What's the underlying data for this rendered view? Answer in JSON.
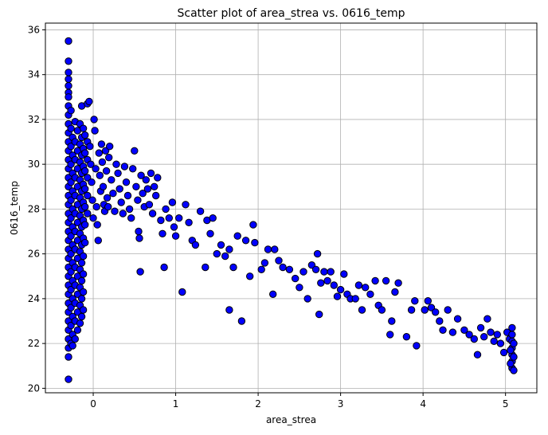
{
  "chart_data": {
    "type": "scatter",
    "title": "Scatter plot of area_strea vs. 0616_temp",
    "xlabel": "area_strea",
    "ylabel": "0616_temp",
    "xlim": [
      -0.58,
      5.38
    ],
    "ylim": [
      19.8,
      36.3
    ],
    "xticks": [
      0,
      1,
      2,
      3,
      4,
      5
    ],
    "yticks": [
      20,
      22,
      24,
      26,
      28,
      30,
      32,
      34,
      36
    ],
    "grid": true,
    "marker_color": "#0000ff",
    "edge_color": "#000000",
    "points": [
      [
        -0.3,
        35.5
      ],
      [
        -0.3,
        34.6
      ],
      [
        -0.3,
        34.1
      ],
      [
        -0.3,
        33.8
      ],
      [
        -0.3,
        33.5
      ],
      [
        -0.3,
        33.2
      ],
      [
        -0.3,
        33.0
      ],
      [
        -0.3,
        32.6
      ],
      [
        -0.3,
        32.2
      ],
      [
        -0.3,
        31.8
      ],
      [
        -0.3,
        31.4
      ],
      [
        -0.3,
        31.0
      ],
      [
        -0.3,
        30.6
      ],
      [
        -0.3,
        30.2
      ],
      [
        -0.3,
        29.8
      ],
      [
        -0.3,
        29.4
      ],
      [
        -0.3,
        29.0
      ],
      [
        -0.3,
        28.6
      ],
      [
        -0.3,
        28.2
      ],
      [
        -0.3,
        27.8
      ],
      [
        -0.3,
        27.4
      ],
      [
        -0.3,
        27.0
      ],
      [
        -0.3,
        26.6
      ],
      [
        -0.3,
        26.2
      ],
      [
        -0.3,
        25.8
      ],
      [
        -0.3,
        25.4
      ],
      [
        -0.3,
        25.0
      ],
      [
        -0.3,
        24.6
      ],
      [
        -0.3,
        24.2
      ],
      [
        -0.3,
        23.8
      ],
      [
        -0.3,
        23.4
      ],
      [
        -0.3,
        23.0
      ],
      [
        -0.3,
        22.6
      ],
      [
        -0.3,
        22.2
      ],
      [
        -0.3,
        21.8
      ],
      [
        -0.3,
        21.4
      ],
      [
        -0.3,
        20.4
      ],
      [
        -0.27,
        32.4
      ],
      [
        -0.27,
        31.6
      ],
      [
        -0.27,
        30.8
      ],
      [
        -0.27,
        30.0
      ],
      [
        -0.27,
        29.2
      ],
      [
        -0.27,
        28.4
      ],
      [
        -0.27,
        27.6
      ],
      [
        -0.27,
        26.8
      ],
      [
        -0.27,
        26.0
      ],
      [
        -0.27,
        25.2
      ],
      [
        -0.27,
        24.4
      ],
      [
        -0.27,
        23.6
      ],
      [
        -0.27,
        22.8
      ],
      [
        -0.27,
        22.0
      ],
      [
        -0.25,
        31.2
      ],
      [
        -0.25,
        30.4
      ],
      [
        -0.25,
        29.6
      ],
      [
        -0.25,
        28.8
      ],
      [
        -0.25,
        28.0
      ],
      [
        -0.25,
        27.2
      ],
      [
        -0.25,
        26.4
      ],
      [
        -0.25,
        25.6
      ],
      [
        -0.25,
        24.8
      ],
      [
        -0.25,
        24.0
      ],
      [
        -0.25,
        23.2
      ],
      [
        -0.25,
        22.4
      ],
      [
        -0.25,
        21.9
      ],
      [
        -0.22,
        31.9
      ],
      [
        -0.22,
        31.0
      ],
      [
        -0.22,
        30.2
      ],
      [
        -0.22,
        29.4
      ],
      [
        -0.22,
        28.6
      ],
      [
        -0.22,
        27.8
      ],
      [
        -0.22,
        27.0
      ],
      [
        -0.22,
        26.2
      ],
      [
        -0.22,
        25.4
      ],
      [
        -0.22,
        24.6
      ],
      [
        -0.22,
        23.8
      ],
      [
        -0.22,
        23.0
      ],
      [
        -0.22,
        22.2
      ],
      [
        -0.19,
        31.5
      ],
      [
        -0.19,
        30.6
      ],
      [
        -0.19,
        29.8
      ],
      [
        -0.19,
        29.0
      ],
      [
        -0.19,
        28.2
      ],
      [
        -0.19,
        27.4
      ],
      [
        -0.19,
        26.6
      ],
      [
        -0.19,
        25.8
      ],
      [
        -0.19,
        25.0
      ],
      [
        -0.19,
        24.2
      ],
      [
        -0.19,
        23.4
      ],
      [
        -0.19,
        22.6
      ],
      [
        -0.16,
        31.8
      ],
      [
        -0.16,
        30.9
      ],
      [
        -0.16,
        30.1
      ],
      [
        -0.16,
        29.3
      ],
      [
        -0.16,
        28.5
      ],
      [
        -0.16,
        27.7
      ],
      [
        -0.16,
        26.9
      ],
      [
        -0.16,
        26.1
      ],
      [
        -0.16,
        25.3
      ],
      [
        -0.16,
        24.5
      ],
      [
        -0.16,
        23.7
      ],
      [
        -0.16,
        22.9
      ],
      [
        -0.14,
        32.6
      ],
      [
        -0.14,
        31.2
      ],
      [
        -0.14,
        30.4
      ],
      [
        -0.14,
        29.6
      ],
      [
        -0.14,
        28.8
      ],
      [
        -0.14,
        28.0
      ],
      [
        -0.14,
        27.2
      ],
      [
        -0.14,
        26.4
      ],
      [
        -0.14,
        25.6
      ],
      [
        -0.14,
        24.8
      ],
      [
        -0.14,
        24.0
      ],
      [
        -0.14,
        23.2
      ],
      [
        -0.12,
        31.6
      ],
      [
        -0.12,
        30.7
      ],
      [
        -0.12,
        29.9
      ],
      [
        -0.12,
        29.1
      ],
      [
        -0.12,
        28.3
      ],
      [
        -0.12,
        27.5
      ],
      [
        -0.12,
        26.7
      ],
      [
        -0.12,
        25.9
      ],
      [
        -0.12,
        25.1
      ],
      [
        -0.12,
        24.3
      ],
      [
        -0.12,
        23.5
      ],
      [
        -0.1,
        31.3
      ],
      [
        -0.1,
        30.5
      ],
      [
        -0.1,
        29.7
      ],
      [
        -0.1,
        28.9
      ],
      [
        -0.1,
        28.1
      ],
      [
        -0.1,
        27.3
      ],
      [
        -0.1,
        26.5
      ],
      [
        -0.07,
        32.7
      ],
      [
        -0.07,
        31.0
      ],
      [
        -0.07,
        30.2
      ],
      [
        -0.07,
        29.4
      ],
      [
        -0.07,
        28.6
      ],
      [
        -0.07,
        27.8
      ],
      [
        -0.05,
        32.8
      ],
      [
        -0.04,
        30.8
      ],
      [
        -0.03,
        30.0
      ],
      [
        -0.02,
        29.2
      ],
      [
        -0.01,
        28.4
      ],
      [
        0.0,
        27.6
      ],
      [
        0.01,
        32.0
      ],
      [
        0.02,
        31.5
      ],
      [
        0.03,
        29.8
      ],
      [
        0.04,
        28.1
      ],
      [
        0.05,
        27.3
      ],
      [
        0.06,
        26.6
      ],
      [
        0.07,
        30.5
      ],
      [
        0.08,
        29.5
      ],
      [
        0.09,
        28.8
      ],
      [
        0.1,
        30.9
      ],
      [
        0.11,
        30.1
      ],
      [
        0.12,
        29.0
      ],
      [
        0.13,
        28.2
      ],
      [
        0.14,
        27.9
      ],
      [
        0.15,
        30.6
      ],
      [
        0.16,
        29.7
      ],
      [
        0.17,
        28.5
      ],
      [
        0.18,
        28.1
      ],
      [
        0.19,
        30.3
      ],
      [
        0.2,
        30.8
      ],
      [
        0.22,
        29.3
      ],
      [
        0.24,
        28.7
      ],
      [
        0.26,
        27.9
      ],
      [
        0.28,
        30.0
      ],
      [
        0.3,
        29.6
      ],
      [
        0.32,
        28.9
      ],
      [
        0.34,
        28.3
      ],
      [
        0.36,
        27.8
      ],
      [
        0.38,
        29.9
      ],
      [
        0.4,
        29.2
      ],
      [
        0.42,
        28.6
      ],
      [
        0.44,
        28.0
      ],
      [
        0.46,
        27.6
      ],
      [
        0.48,
        29.8
      ],
      [
        0.5,
        30.6
      ],
      [
        0.52,
        29.0
      ],
      [
        0.54,
        28.4
      ],
      [
        0.55,
        27.0
      ],
      [
        0.56,
        26.7
      ],
      [
        0.57,
        25.2
      ],
      [
        0.58,
        29.5
      ],
      [
        0.6,
        28.7
      ],
      [
        0.62,
        28.1
      ],
      [
        0.64,
        29.3
      ],
      [
        0.66,
        28.9
      ],
      [
        0.68,
        28.2
      ],
      [
        0.7,
        29.6
      ],
      [
        0.72,
        27.8
      ],
      [
        0.74,
        29.0
      ],
      [
        0.76,
        28.6
      ],
      [
        0.78,
        29.4
      ],
      [
        0.82,
        27.5
      ],
      [
        0.84,
        26.9
      ],
      [
        0.86,
        25.4
      ],
      [
        0.88,
        28.0
      ],
      [
        0.92,
        27.6
      ],
      [
        0.96,
        28.3
      ],
      [
        0.98,
        27.2
      ],
      [
        1.0,
        26.8
      ],
      [
        1.04,
        27.6
      ],
      [
        1.08,
        24.3
      ],
      [
        1.12,
        28.2
      ],
      [
        1.16,
        27.4
      ],
      [
        1.2,
        26.6
      ],
      [
        1.24,
        26.4
      ],
      [
        1.3,
        27.9
      ],
      [
        1.36,
        25.4
      ],
      [
        1.38,
        27.5
      ],
      [
        1.42,
        26.9
      ],
      [
        1.45,
        27.6
      ],
      [
        1.5,
        26.0
      ],
      [
        1.55,
        26.4
      ],
      [
        1.6,
        25.9
      ],
      [
        1.65,
        26.2
      ],
      [
        1.7,
        25.4
      ],
      [
        1.65,
        23.5
      ],
      [
        1.75,
        26.8
      ],
      [
        1.8,
        23.0
      ],
      [
        1.85,
        26.6
      ],
      [
        1.9,
        25.0
      ],
      [
        1.94,
        27.3
      ],
      [
        1.96,
        26.5
      ],
      [
        2.04,
        25.3
      ],
      [
        2.08,
        25.6
      ],
      [
        2.12,
        26.2
      ],
      [
        2.18,
        24.2
      ],
      [
        2.2,
        26.2
      ],
      [
        2.25,
        25.7
      ],
      [
        2.3,
        25.4
      ],
      [
        2.38,
        25.3
      ],
      [
        2.45,
        24.9
      ],
      [
        2.5,
        24.5
      ],
      [
        2.55,
        25.2
      ],
      [
        2.6,
        24.0
      ],
      [
        2.65,
        25.5
      ],
      [
        2.7,
        25.3
      ],
      [
        2.72,
        26.0
      ],
      [
        2.74,
        23.3
      ],
      [
        2.76,
        24.7
      ],
      [
        2.8,
        25.2
      ],
      [
        2.84,
        24.8
      ],
      [
        2.88,
        25.2
      ],
      [
        2.92,
        24.6
      ],
      [
        2.96,
        24.1
      ],
      [
        3.0,
        24.4
      ],
      [
        3.04,
        25.1
      ],
      [
        3.08,
        24.2
      ],
      [
        3.12,
        24.0
      ],
      [
        3.18,
        24.0
      ],
      [
        3.22,
        24.6
      ],
      [
        3.26,
        23.5
      ],
      [
        3.3,
        24.5
      ],
      [
        3.36,
        24.2
      ],
      [
        3.42,
        24.8
      ],
      [
        3.46,
        23.7
      ],
      [
        3.5,
        23.5
      ],
      [
        3.55,
        24.8
      ],
      [
        3.6,
        22.4
      ],
      [
        3.62,
        23.0
      ],
      [
        3.66,
        24.3
      ],
      [
        3.7,
        24.7
      ],
      [
        3.8,
        22.3
      ],
      [
        3.86,
        23.5
      ],
      [
        3.9,
        23.9
      ],
      [
        3.92,
        21.9
      ],
      [
        4.02,
        23.5
      ],
      [
        4.06,
        23.9
      ],
      [
        4.1,
        23.6
      ],
      [
        4.15,
        23.4
      ],
      [
        4.2,
        23.0
      ],
      [
        4.24,
        22.6
      ],
      [
        4.3,
        23.5
      ],
      [
        4.36,
        22.5
      ],
      [
        4.42,
        23.1
      ],
      [
        4.5,
        22.6
      ],
      [
        4.56,
        22.4
      ],
      [
        4.62,
        22.2
      ],
      [
        4.66,
        21.5
      ],
      [
        4.7,
        22.7
      ],
      [
        4.74,
        22.3
      ],
      [
        4.78,
        23.1
      ],
      [
        4.82,
        22.5
      ],
      [
        4.86,
        22.1
      ],
      [
        4.9,
        22.4
      ],
      [
        4.94,
        22.0
      ],
      [
        4.98,
        21.6
      ],
      [
        5.02,
        22.5
      ],
      [
        5.05,
        22.2
      ],
      [
        5.08,
        22.7
      ],
      [
        5.08,
        22.4
      ],
      [
        5.08,
        22.1
      ],
      [
        5.08,
        21.8
      ],
      [
        5.08,
        21.5
      ],
      [
        5.08,
        21.2
      ],
      [
        5.08,
        20.9
      ],
      [
        5.1,
        22.0
      ],
      [
        5.1,
        21.4
      ],
      [
        5.1,
        20.8
      ],
      [
        5.06,
        21.7
      ],
      [
        5.06,
        21.1
      ]
    ]
  }
}
